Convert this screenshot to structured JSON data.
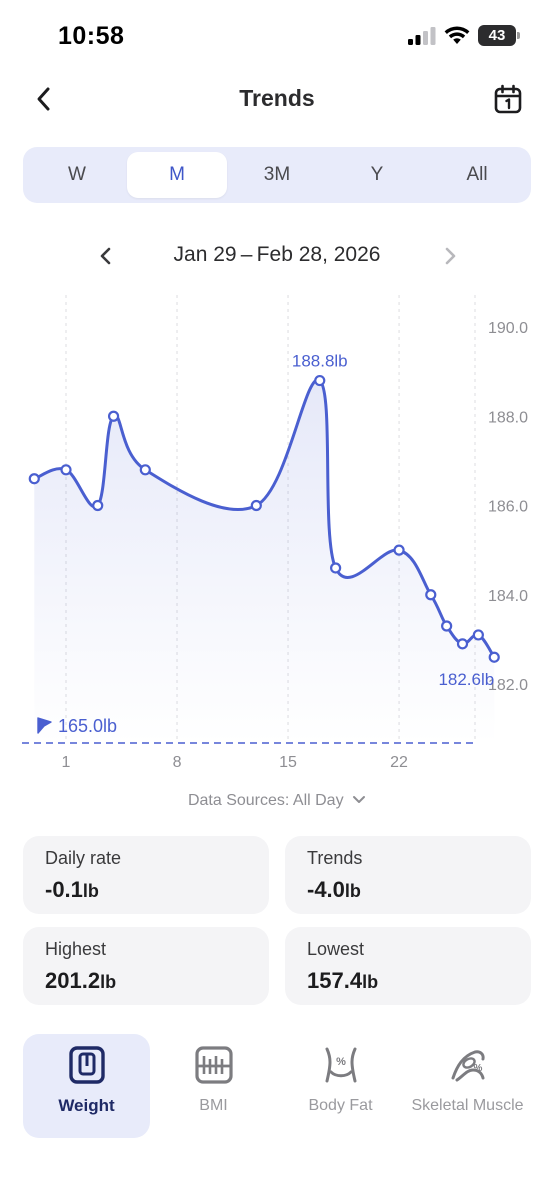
{
  "status_bar": {
    "time": "10:58",
    "battery": "43"
  },
  "nav": {
    "title": "Trends"
  },
  "segments": [
    {
      "label": "W",
      "active": false
    },
    {
      "label": "M",
      "active": true
    },
    {
      "label": "3M",
      "active": false
    },
    {
      "label": "Y",
      "active": false
    },
    {
      "label": "All",
      "active": false
    }
  ],
  "date_range": "Jan 29 – Feb 28, 2026",
  "chart_data": {
    "type": "line",
    "x_ticks": [
      "1",
      "8",
      "15",
      "22"
    ],
    "y_ticks": [
      "190.0",
      "188.0",
      "186.0",
      "184.0",
      "182.0"
    ],
    "ylim": [
      181.4,
      190.0
    ],
    "points": [
      {
        "x": -2,
        "y": 186.6
      },
      {
        "x": 0,
        "y": 186.8
      },
      {
        "x": 2,
        "y": 186.0
      },
      {
        "x": 3,
        "y": 188.0
      },
      {
        "x": 5,
        "y": 186.8
      },
      {
        "x": 12,
        "y": 186.0
      },
      {
        "x": 16,
        "y": 188.8
      },
      {
        "x": 17,
        "y": 184.6
      },
      {
        "x": 21,
        "y": 185.0
      },
      {
        "x": 23,
        "y": 184.0
      },
      {
        "x": 24,
        "y": 183.3
      },
      {
        "x": 25,
        "y": 182.9
      },
      {
        "x": 26,
        "y": 183.1
      },
      {
        "x": 27,
        "y": 182.6
      }
    ],
    "max_label": "188.8lb",
    "last_label": "182.6lb",
    "goal_label": "165.0lb",
    "accent_color": "#4a5fd0"
  },
  "data_sources": "Data Sources: All Day",
  "stats": {
    "daily_rate": {
      "label": "Daily rate",
      "value": "-0.1",
      "unit": "lb"
    },
    "trends": {
      "label": "Trends",
      "value": "-4.0",
      "unit": "lb"
    },
    "highest": {
      "label": "Highest",
      "value": "201.2",
      "unit": "lb"
    },
    "lowest": {
      "label": "Lowest",
      "value": "157.4",
      "unit": "lb"
    }
  },
  "metrics": [
    {
      "label": "Weight",
      "icon": "scale-icon",
      "active": true
    },
    {
      "label": "BMI",
      "icon": "bmi-icon",
      "active": false
    },
    {
      "label": "Body Fat",
      "icon": "body-fat-icon",
      "active": false
    },
    {
      "label": "Skeletal Muscle",
      "icon": "muscle-icon",
      "active": false
    }
  ]
}
